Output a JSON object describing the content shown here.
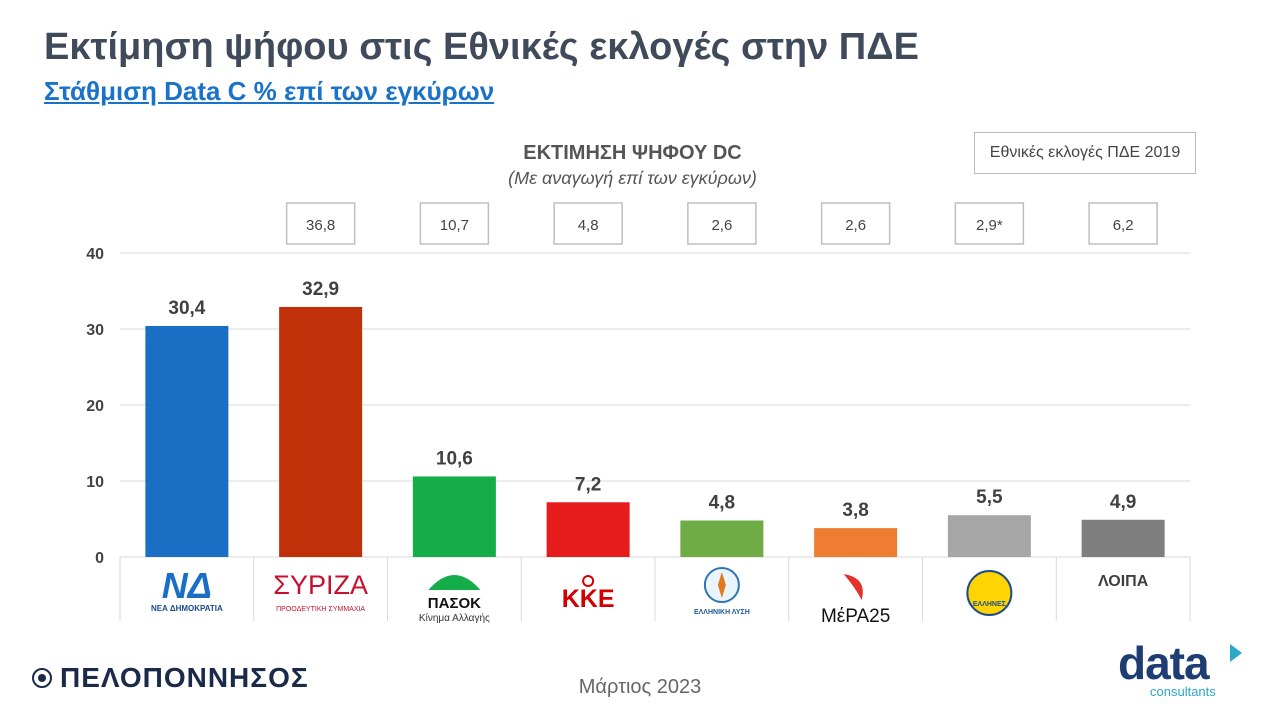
{
  "header": {
    "title": "Εκτίμηση ψήφου στις Εθνικές εκλογές στην ΠΔΕ",
    "subtitle": "Στάθμιση Data C % επί των εγκύρων"
  },
  "chart_data": {
    "type": "bar",
    "title": "ΕΚΤΙΜΗΣΗ ΨΗΦΟΥ DC",
    "subtitle": "(Με αναγωγή επί των εγκύρων)",
    "categories": [
      "ΝΕΑ ΔΗΜΟΚΡΑΤΙΑ",
      "ΣΥΡΙΖΑ",
      "ΠΑΣΟΚ",
      "ΚΚΕ",
      "ΕΛΛΗΝΙΚΗ ΛΥΣΗ",
      "ΜέΡΑ25",
      "ΕΛΛΗΝΕΣ",
      "ΛΟΙΠΑ"
    ],
    "values": [
      30.4,
      32.9,
      10.6,
      7.2,
      4.8,
      3.8,
      5.5,
      4.9
    ],
    "value_labels": [
      "30,4",
      "32,9",
      "10,6",
      "7,2",
      "4,8",
      "3,8",
      "5,5",
      "4,9"
    ],
    "colors": [
      "#1a6fc4",
      "#c0310a",
      "#15ad4a",
      "#e61b1b",
      "#6fac46",
      "#ee7d31",
      "#a6a6a6",
      "#7f7f7f"
    ],
    "ylim": [
      0,
      40
    ],
    "yticks": [
      0,
      10,
      20,
      30,
      40
    ],
    "grid": true,
    "reference": {
      "label": "Εθνικές εκλογές ΠΔΕ 2019",
      "values": [
        "36,8",
        "10,7",
        "4,8",
        "2,6",
        "2,6",
        "2,9*",
        "6,2"
      ],
      "categories": [
        "ΣΥΡΙΖΑ",
        "ΠΑΣΟΚ",
        "ΚΚΕ",
        "ΕΛΛΗΝΙΚΗ ΛΥΣΗ",
        "ΜέΡΑ25",
        "ΕΛΛΗΝΕΣ",
        "ΛΟΙΠΑ"
      ]
    },
    "logo_texts": {
      "nd_mark": "ΝΔ",
      "nd": "ΝΕΑ ΔΗΜΟΚΡΑΤΙΑ",
      "syriza": "ΣΥΡΙΖΑ",
      "syriza_sub": "ΠΡΟΟΔΕΥΤΙΚΗ ΣΥΜΜΑΧΙΑ",
      "pasok": "ΠΑΣΟΚ",
      "pasok_sub": "Κίνημα Αλλαγής",
      "kke": "ΚΚΕ",
      "el_lysi": "ΕΛΛΗΝΙΚΗ ΛΥΣΗ",
      "mera25": "ΜέΡΑ25",
      "ellines": "ΕΛΛΗΝΕΣ",
      "loipa": "ΛΟΙΠΑ"
    }
  },
  "footer": {
    "region": "ΠΕΛΟΠΟΝΝΗΣΟΣ",
    "date": "Μάρτιος 2023",
    "brand": "data",
    "brand_sub": "consultants"
  }
}
